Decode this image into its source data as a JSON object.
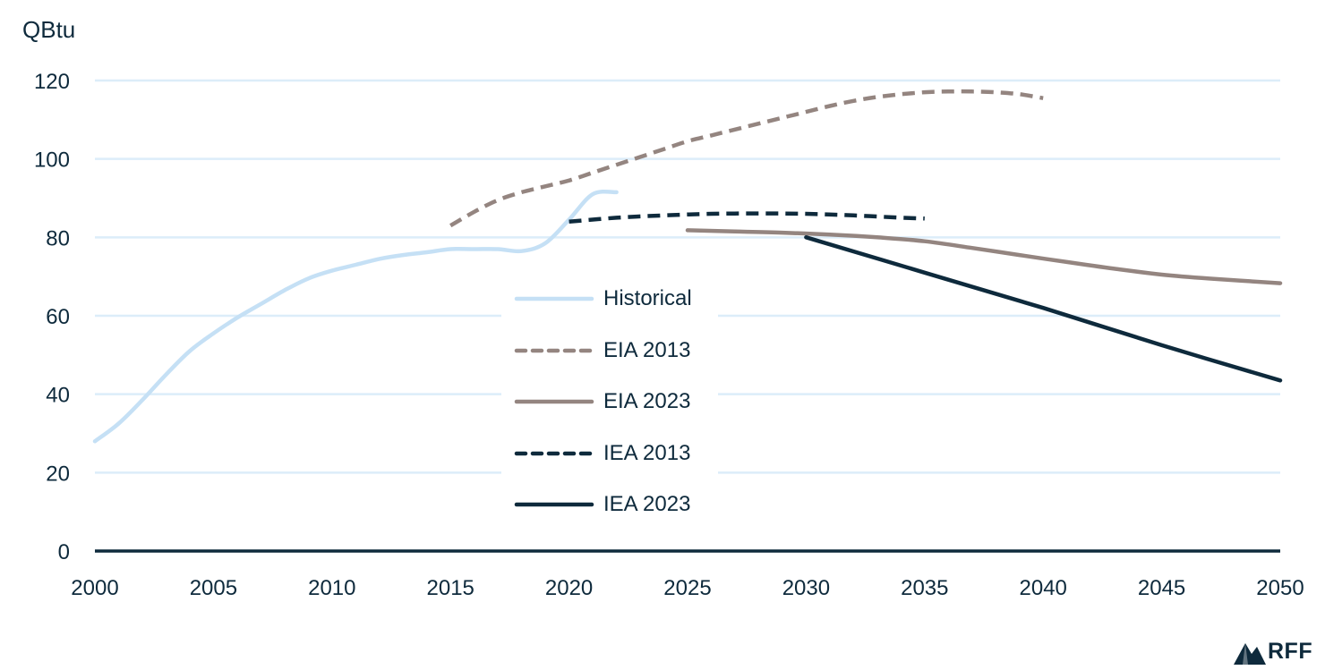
{
  "chart_data": {
    "type": "line",
    "ylabel": "QBtu",
    "ylim": [
      0,
      120
    ],
    "yticks": [
      0,
      20,
      40,
      60,
      80,
      100,
      120
    ],
    "xlim": [
      2000,
      2050
    ],
    "xticks": [
      2000,
      2005,
      2010,
      2015,
      2020,
      2025,
      2030,
      2035,
      2040,
      2045,
      2050
    ],
    "grid": true,
    "legend_position": "center",
    "series": [
      {
        "name": "Historical",
        "color": "#c5e0f5",
        "dash": false,
        "x": [
          2000,
          2001,
          2002,
          2003,
          2004,
          2005,
          2006,
          2007,
          2008,
          2009,
          2010,
          2011,
          2012,
          2013,
          2014,
          2015,
          2016,
          2017,
          2018,
          2019,
          2020,
          2021,
          2022
        ],
        "y": [
          28,
          32.5,
          38.5,
          45,
          51,
          55.5,
          59.5,
          63,
          66.5,
          69.5,
          71.5,
          73,
          74.5,
          75.5,
          76.2,
          77,
          77,
          77,
          76.5,
          78.5,
          84.5,
          91,
          91.5
        ]
      },
      {
        "name": "EIA 2013",
        "color": "#948580",
        "dash": true,
        "x": [
          2015,
          2016,
          2017,
          2018,
          2019,
          2020,
          2021,
          2022,
          2023,
          2024,
          2025,
          2026,
          2027,
          2028,
          2029,
          2030,
          2031,
          2032,
          2033,
          2034,
          2035,
          2036,
          2037,
          2038,
          2039,
          2040
        ],
        "y": [
          83,
          86.5,
          89.5,
          91.5,
          93,
          94.5,
          96.5,
          98.5,
          100.5,
          102.5,
          104.5,
          106,
          107.5,
          109,
          110.5,
          112,
          113.5,
          114.8,
          115.8,
          116.5,
          117,
          117.2,
          117.2,
          117,
          116.5,
          115.5
        ]
      },
      {
        "name": "EIA 2023",
        "color": "#948580",
        "dash": false,
        "x": [
          2025,
          2027,
          2029,
          2031,
          2033,
          2035,
          2037,
          2039,
          2041,
          2043,
          2045,
          2047,
          2050
        ],
        "y": [
          81.8,
          81.5,
          81.2,
          80.7,
          80,
          79,
          77.3,
          75.5,
          73.7,
          72,
          70.5,
          69.5,
          68.3
        ]
      },
      {
        "name": "IEA 2013",
        "color": "#0e2a3c",
        "dash": true,
        "x": [
          2020,
          2022,
          2024,
          2026,
          2028,
          2030,
          2032,
          2034,
          2035
        ],
        "y": [
          84,
          85,
          85.6,
          86,
          86.1,
          86,
          85.6,
          85,
          84.8
        ]
      },
      {
        "name": "IEA 2023",
        "color": "#0e2a3c",
        "dash": false,
        "x": [
          2030,
          2035,
          2040,
          2045,
          2050
        ],
        "y": [
          80,
          71,
          62,
          52.5,
          43.5
        ]
      }
    ]
  },
  "logo": {
    "text": "RFF"
  }
}
